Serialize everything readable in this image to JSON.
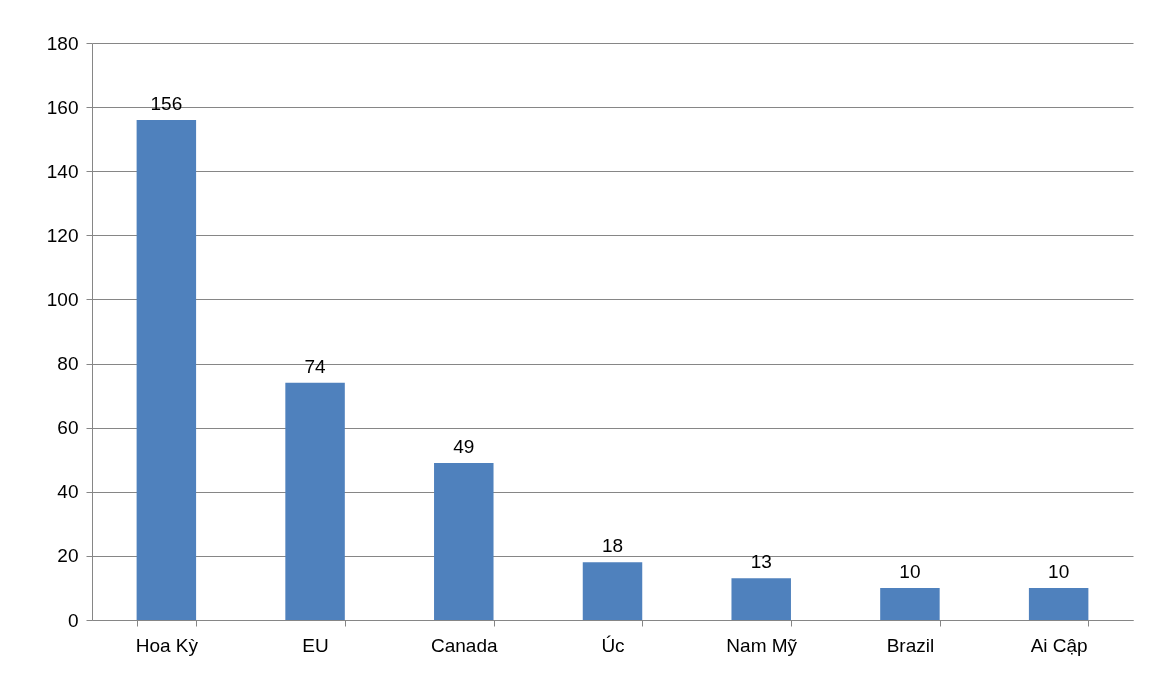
{
  "chart_data": {
    "type": "bar",
    "categories": [
      "Hoa Kỳ",
      "EU",
      "Canada",
      "Úc",
      "Nam Mỹ",
      "Brazil",
      "Ai Cập"
    ],
    "values": [
      156,
      74,
      49,
      18,
      13,
      10,
      10
    ],
    "color": "#4f81bd",
    "ylim": [
      0,
      180
    ],
    "yticks": [
      0,
      20,
      40,
      60,
      80,
      100,
      120,
      140,
      160,
      180
    ],
    "grid": "y",
    "data_labels": true
  }
}
